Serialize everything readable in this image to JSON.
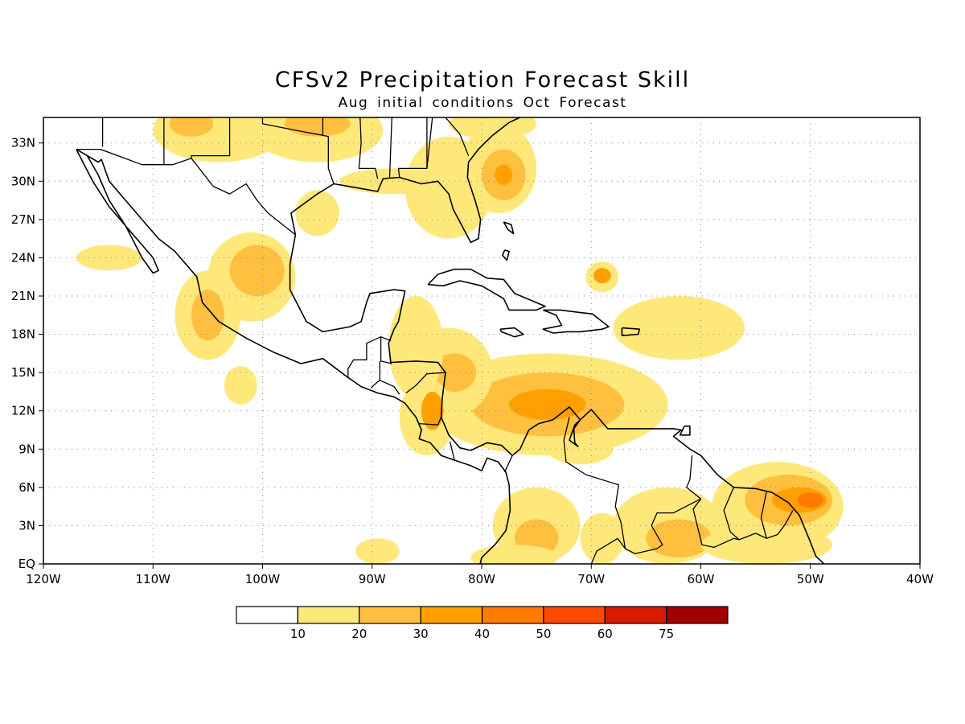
{
  "header": {
    "title": "CFSv2 Precipitation Forecast Skill",
    "subtitle": "Aug initial conditions  Oct Forecast"
  },
  "map": {
    "lon_range": [
      -120,
      -40
    ],
    "lat_range": [
      0,
      35
    ],
    "x_ticks": [
      "120W",
      "110W",
      "100W",
      "90W",
      "80W",
      "70W",
      "60W",
      "50W",
      "40W"
    ],
    "y_ticks": [
      "EQ",
      "3N",
      "6N",
      "9N",
      "12N",
      "15N",
      "18N",
      "21N",
      "24N",
      "27N",
      "30N",
      "33N"
    ],
    "grid": true
  },
  "legend": {
    "labels": [
      "10",
      "20",
      "30",
      "40",
      "50",
      "60",
      "75"
    ],
    "colors": [
      "#ffffff",
      "#ffe87a",
      "#ffc040",
      "#ffa000",
      "#ff7a00",
      "#ff4800",
      "#d81a00",
      "#a00000"
    ]
  },
  "shading": [
    {
      "level": 1,
      "lon": -74,
      "lat": 12.5,
      "rx": 11,
      "ry": 4
    },
    {
      "level": 2,
      "lon": -74,
      "lat": 12.5,
      "rx": 7,
      "ry": 2.5
    },
    {
      "level": 3,
      "lon": -74,
      "lat": 12.5,
      "rx": 3.5,
      "ry": 1.2
    },
    {
      "level": 1,
      "lon": -83,
      "lat": 15,
      "rx": 4,
      "ry": 3.5
    },
    {
      "level": 2,
      "lon": -82.5,
      "lat": 15,
      "rx": 2,
      "ry": 1.5
    },
    {
      "level": 1,
      "lon": -86,
      "lat": 17,
      "rx": 2.5,
      "ry": 4
    },
    {
      "level": 1,
      "lon": -85,
      "lat": 11.5,
      "rx": 2.5,
      "ry": 3
    },
    {
      "level": 3,
      "lon": -84.5,
      "lat": 12,
      "rx": 1,
      "ry": 1.5
    },
    {
      "level": 1,
      "lon": -101,
      "lat": 22.5,
      "rx": 4,
      "ry": 3.5
    },
    {
      "level": 2,
      "lon": -100.5,
      "lat": 23,
      "rx": 2.5,
      "ry": 2
    },
    {
      "level": 1,
      "lon": -105,
      "lat": 19.5,
      "rx": 3,
      "ry": 3.5
    },
    {
      "level": 2,
      "lon": -105,
      "lat": 19.5,
      "rx": 1.5,
      "ry": 2
    },
    {
      "level": 1,
      "lon": -102,
      "lat": 14,
      "rx": 1.5,
      "ry": 1.5
    },
    {
      "level": 1,
      "lon": -83,
      "lat": 29.5,
      "rx": 4,
      "ry": 4
    },
    {
      "level": 1,
      "lon": -78.5,
      "lat": 31,
      "rx": 3.5,
      "ry": 3.5
    },
    {
      "level": 2,
      "lon": -78,
      "lat": 30.5,
      "rx": 2,
      "ry": 2
    },
    {
      "level": 3,
      "lon": -78,
      "lat": 30.5,
      "rx": 0.8,
      "ry": 0.8
    },
    {
      "level": 1,
      "lon": -104,
      "lat": 34,
      "rx": 6,
      "ry": 2.5
    },
    {
      "level": 2,
      "lon": -106.5,
      "lat": 34.5,
      "rx": 2,
      "ry": 1
    },
    {
      "level": 1,
      "lon": -95,
      "lat": 34,
      "rx": 6,
      "ry": 2.5
    },
    {
      "level": 2,
      "lon": -95,
      "lat": 34.5,
      "rx": 3,
      "ry": 1
    },
    {
      "level": 1,
      "lon": -79,
      "lat": 34.5,
      "rx": 4,
      "ry": 1.2
    },
    {
      "level": 1,
      "lon": -53,
      "lat": 4.5,
      "rx": 6,
      "ry": 3.5
    },
    {
      "level": 2,
      "lon": -52,
      "lat": 5,
      "rx": 4,
      "ry": 2
    },
    {
      "level": 3,
      "lon": -51,
      "lat": 5,
      "rx": 2.5,
      "ry": 1
    },
    {
      "level": 4,
      "lon": -50,
      "lat": 5,
      "rx": 1.2,
      "ry": 0.6
    },
    {
      "level": 1,
      "lon": -63,
      "lat": 3,
      "rx": 5,
      "ry": 3
    },
    {
      "level": 2,
      "lon": -62,
      "lat": 2,
      "rx": 3,
      "ry": 1.5
    },
    {
      "level": 1,
      "lon": -75,
      "lat": 3,
      "rx": 4,
      "ry": 3
    },
    {
      "level": 2,
      "lon": -75,
      "lat": 2,
      "rx": 2,
      "ry": 1.5
    },
    {
      "level": 1,
      "lon": -69,
      "lat": 22.5,
      "rx": 1.5,
      "ry": 1.2
    },
    {
      "level": 3,
      "lon": -69,
      "lat": 22.6,
      "rx": 0.8,
      "ry": 0.6
    },
    {
      "level": 1,
      "lon": -69,
      "lat": 2,
      "rx": 2,
      "ry": 2
    },
    {
      "level": 1,
      "lon": -54,
      "lat": 1.5,
      "rx": 6,
      "ry": 1.5
    }
  ],
  "light_areas": [
    {
      "lon": -62,
      "lat": 18.5,
      "rx": 6,
      "ry": 2.5
    },
    {
      "lon": -71,
      "lat": 9,
      "rx": 3,
      "ry": 1.2
    },
    {
      "lon": -89.5,
      "lat": 1,
      "rx": 2,
      "ry": 1
    },
    {
      "lon": -114,
      "lat": 24,
      "rx": 3,
      "ry": 1
    },
    {
      "lon": -95,
      "lat": 27.5,
      "rx": 2,
      "ry": 1.8
    },
    {
      "lon": -88,
      "lat": 30,
      "rx": 5,
      "ry": 1
    },
    {
      "lon": -77,
      "lat": 0.5,
      "rx": 4,
      "ry": 1
    }
  ],
  "coast_paths": [
    [
      [
        -117,
        32.5
      ],
      [
        -115.5,
        30
      ],
      [
        -114,
        28
      ],
      [
        -112,
        26
      ],
      [
        -110,
        24
      ],
      [
        -109.5,
        23
      ],
      [
        -110,
        22.8
      ],
      [
        -111,
        24
      ],
      [
        -112.5,
        26.5
      ],
      [
        -114,
        28.5
      ],
      [
        -115,
        30.5
      ],
      [
        -116,
        32
      ]
    ],
    [
      [
        -117,
        32.5
      ],
      [
        -115,
        31.5
      ],
      [
        -114.7,
        31.7
      ],
      [
        -114,
        30
      ],
      [
        -112.5,
        28.5
      ],
      [
        -111,
        27
      ],
      [
        -109.5,
        25.5
      ],
      [
        -108,
        24.5
      ],
      [
        -106,
        22.5
      ],
      [
        -105.5,
        20.5
      ],
      [
        -104,
        19
      ],
      [
        -101.5,
        17.7
      ],
      [
        -99,
        16.6
      ],
      [
        -96.5,
        15.7
      ],
      [
        -94.5,
        16.1
      ],
      [
        -92.5,
        14.8
      ],
      [
        -91,
        13.9
      ],
      [
        -89.5,
        13.4
      ],
      [
        -88,
        13.1
      ],
      [
        -87,
        12.6
      ],
      [
        -86,
        11.5
      ],
      [
        -85.5,
        10.5
      ],
      [
        -85.7,
        9.8
      ],
      [
        -84.7,
        9.5
      ],
      [
        -83.7,
        8.5
      ],
      [
        -82.7,
        8.2
      ],
      [
        -81,
        7.7
      ],
      [
        -80,
        7.3
      ],
      [
        -79.5,
        8.3
      ],
      [
        -78.5,
        8
      ],
      [
        -77.8,
        7.2
      ],
      [
        -77.5,
        6.2
      ],
      [
        -77.4,
        4.2
      ],
      [
        -77.8,
        2.6
      ],
      [
        -78.8,
        1.5
      ],
      [
        -80,
        0.5
      ],
      [
        -80.2,
        -0.2
      ]
    ],
    [
      [
        -97,
        25.8
      ],
      [
        -97.5,
        23.5
      ],
      [
        -97.5,
        21.5
      ],
      [
        -96,
        19
      ],
      [
        -94.5,
        18.2
      ],
      [
        -92,
        18.6
      ],
      [
        -91,
        19
      ],
      [
        -90.5,
        20.5
      ],
      [
        -90.2,
        21.2
      ],
      [
        -88,
        21.5
      ],
      [
        -87,
        21.4
      ],
      [
        -87.6,
        19
      ],
      [
        -88,
        18.4
      ],
      [
        -88.5,
        17.3
      ],
      [
        -88.3,
        15.8
      ],
      [
        -86,
        15.9
      ],
      [
        -84,
        15.8
      ],
      [
        -83.3,
        15
      ],
      [
        -83.6,
        13
      ],
      [
        -83.7,
        11.5
      ],
      [
        -83,
        10.1
      ],
      [
        -82,
        9.1
      ],
      [
        -81,
        8.9
      ],
      [
        -79.5,
        9.5
      ],
      [
        -78.2,
        9.3
      ],
      [
        -77.2,
        8.5
      ],
      [
        -76.5,
        9
      ],
      [
        -75.7,
        10.5
      ],
      [
        -74.8,
        11
      ],
      [
        -73.5,
        11.3
      ],
      [
        -72,
        12.3
      ],
      [
        -71,
        11.3
      ],
      [
        -71.6,
        10.6
      ],
      [
        -71.5,
        9.5
      ],
      [
        -71.2,
        9.2
      ],
      [
        -72,
        9.7
      ],
      [
        -71.5,
        10.9
      ],
      [
        -70,
        12.1
      ],
      [
        -68.5,
        10.6
      ],
      [
        -66,
        10.6
      ],
      [
        -64,
        10.6
      ],
      [
        -62.5,
        10.6
      ],
      [
        -61.8,
        10.5
      ],
      [
        -62.5,
        10
      ],
      [
        -61,
        9
      ],
      [
        -60,
        8.5
      ],
      [
        -58.5,
        7
      ],
      [
        -57,
        6
      ],
      [
        -55,
        5.9
      ],
      [
        -53.5,
        5.6
      ],
      [
        -52,
        4.8
      ],
      [
        -51,
        3.8
      ],
      [
        -50,
        1.7
      ],
      [
        -49.5,
        0.6
      ],
      [
        -48.5,
        -0.2
      ]
    ],
    [
      [
        -97,
        25.8
      ],
      [
        -97.4,
        27.5
      ],
      [
        -95,
        29
      ],
      [
        -93.5,
        29.8
      ],
      [
        -91.5,
        29.5
      ],
      [
        -89.5,
        29.2
      ],
      [
        -89,
        30.2
      ],
      [
        -87.5,
        30.3
      ],
      [
        -85.5,
        29.8
      ],
      [
        -84,
        30
      ],
      [
        -83,
        29
      ],
      [
        -82.6,
        27.8
      ],
      [
        -81.8,
        26.5
      ],
      [
        -81,
        25.2
      ],
      [
        -80.3,
        25.5
      ],
      [
        -80.1,
        27
      ],
      [
        -80.6,
        28.5
      ],
      [
        -81.3,
        30.3
      ],
      [
        -81.2,
        31.5
      ],
      [
        -80.3,
        32.5
      ],
      [
        -79,
        33.6
      ],
      [
        -77.5,
        34.6
      ],
      [
        -76.5,
        35
      ]
    ],
    [
      [
        -84.9,
        21.9
      ],
      [
        -84,
        22.7
      ],
      [
        -82.5,
        23.1
      ],
      [
        -81,
        23.1
      ],
      [
        -79.5,
        22.4
      ],
      [
        -78,
        22.3
      ],
      [
        -77,
        21.2
      ],
      [
        -75.6,
        20.7
      ],
      [
        -74.2,
        20.2
      ],
      [
        -75,
        19.9
      ],
      [
        -77.5,
        19.9
      ],
      [
        -78,
        20.8
      ],
      [
        -80,
        21.8
      ],
      [
        -82,
        22.2
      ],
      [
        -83.5,
        21.8
      ],
      [
        -84.9,
        21.9
      ]
    ],
    [
      [
        -74.4,
        19.9
      ],
      [
        -72.8,
        19.9
      ],
      [
        -71,
        19.7
      ],
      [
        -69.9,
        19.6
      ],
      [
        -68.4,
        18.6
      ],
      [
        -69,
        18.4
      ],
      [
        -71,
        18.2
      ],
      [
        -72.2,
        18.2
      ],
      [
        -73.5,
        18.1
      ],
      [
        -74.4,
        18.4
      ],
      [
        -72.7,
        18.7
      ],
      [
        -73.2,
        19.5
      ],
      [
        -74.4,
        19.9
      ]
    ],
    [
      [
        -78.3,
        18.4
      ],
      [
        -77,
        18.5
      ],
      [
        -76.2,
        18
      ],
      [
        -77,
        17.8
      ],
      [
        -78.2,
        18.2
      ],
      [
        -78.3,
        18.4
      ]
    ],
    [
      [
        -67.2,
        18.5
      ],
      [
        -65.6,
        18.4
      ],
      [
        -65.7,
        18
      ],
      [
        -67.2,
        17.9
      ],
      [
        -67.2,
        18.5
      ]
    ],
    [
      [
        -78,
        26.8
      ],
      [
        -77.3,
        26.6
      ],
      [
        -77.1,
        25.9
      ],
      [
        -77.6,
        26.2
      ],
      [
        -78,
        26.8
      ]
    ],
    [
      [
        -77.9,
        24.6
      ],
      [
        -77.5,
        24.5
      ],
      [
        -77.7,
        23.8
      ],
      [
        -78.1,
        24.2
      ],
      [
        -77.9,
        24.6
      ]
    ],
    [
      [
        -61.5,
        10.8
      ],
      [
        -61,
        10.8
      ],
      [
        -61,
        10.1
      ],
      [
        -61.9,
        10.1
      ],
      [
        -61.5,
        10.8
      ]
    ]
  ],
  "border_paths": [
    [
      [
        -117,
        32.5
      ],
      [
        -114.8,
        32.5
      ],
      [
        -111,
        31.3
      ],
      [
        -108.2,
        31.3
      ],
      [
        -106.5,
        31.8
      ],
      [
        -104.5,
        29.6
      ],
      [
        -103,
        29
      ],
      [
        -101.5,
        29.8
      ],
      [
        -100.5,
        28.5
      ],
      [
        -99.5,
        27.5
      ],
      [
        -97,
        25.8
      ]
    ],
    [
      [
        -94.5,
        35
      ],
      [
        -94.5,
        33.6
      ],
      [
        -94,
        33.5
      ],
      [
        -94,
        31
      ],
      [
        -93.5,
        29.8
      ]
    ],
    [
      [
        -91.1,
        35
      ],
      [
        -91,
        33
      ],
      [
        -91.2,
        31
      ],
      [
        -89.7,
        31
      ],
      [
        -89.5,
        30.2
      ]
    ],
    [
      [
        -88.2,
        35
      ],
      [
        -88.4,
        30.3
      ]
    ],
    [
      [
        -85,
        35
      ],
      [
        -85,
        31
      ],
      [
        -87.6,
        31
      ],
      [
        -87.5,
        30.3
      ]
    ],
    [
      [
        -103,
        35
      ],
      [
        -103,
        32
      ],
      [
        -106.5,
        32
      ],
      [
        -106.5,
        31.8
      ]
    ],
    [
      [
        -109,
        35
      ],
      [
        -109,
        31.3
      ]
    ],
    [
      [
        -114.6,
        35
      ],
      [
        -114.6,
        32.7
      ]
    ],
    [
      [
        -100,
        35
      ],
      [
        -100,
        34.5
      ],
      [
        -97,
        34
      ],
      [
        -94.5,
        33.6
      ]
    ],
    [
      [
        -83.3,
        35
      ],
      [
        -82,
        33.7
      ],
      [
        -81.2,
        32
      ]
    ],
    [
      [
        -84.5,
        35
      ],
      [
        -85,
        31
      ]
    ],
    [
      [
        -92.2,
        14.6
      ],
      [
        -92.2,
        15.3
      ],
      [
        -91.7,
        16
      ],
      [
        -90.5,
        16
      ],
      [
        -90.5,
        17.3
      ],
      [
        -89.2,
        17.8
      ],
      [
        -88.3,
        17.5
      ]
    ],
    [
      [
        -89.2,
        17.8
      ],
      [
        -89.2,
        15.9
      ],
      [
        -88.2,
        15.7
      ]
    ],
    [
      [
        -89.3,
        15.9
      ],
      [
        -89.3,
        14.4
      ],
      [
        -89.6,
        14.2
      ],
      [
        -90.1,
        13.8
      ]
    ],
    [
      [
        -89.3,
        14.4
      ],
      [
        -88,
        13.9
      ],
      [
        -87.5,
        13.3
      ]
    ],
    [
      [
        -86.9,
        13.4
      ],
      [
        -86,
        14
      ],
      [
        -85,
        14.9
      ],
      [
        -83.3,
        15
      ]
    ],
    [
      [
        -85.7,
        11
      ],
      [
        -84,
        10.9
      ],
      [
        -83.7,
        11.5
      ]
    ],
    [
      [
        -82.9,
        9.6
      ],
      [
        -82.5,
        8.2
      ]
    ],
    [
      [
        -77.2,
        8.5
      ],
      [
        -77.9,
        7.2
      ]
    ],
    [
      [
        -72,
        11.5
      ],
      [
        -72.5,
        9.7
      ],
      [
        -72.3,
        8
      ],
      [
        -70.5,
        7
      ],
      [
        -67.5,
        6.2
      ],
      [
        -67.8,
        4.5
      ],
      [
        -67.3,
        3.3
      ],
      [
        -66.9,
        1.2
      ],
      [
        -67.6,
        2
      ],
      [
        -69.5,
        1
      ],
      [
        -70,
        0
      ]
    ],
    [
      [
        -60.8,
        8.5
      ],
      [
        -61,
        6.6
      ],
      [
        -61.3,
        6
      ],
      [
        -60,
        5.1
      ],
      [
        -60.7,
        4.3
      ],
      [
        -59.9,
        1.5
      ],
      [
        -58.8,
        1.3
      ],
      [
        -57,
        2
      ],
      [
        -56.5,
        1.9
      ]
    ],
    [
      [
        -57,
        6
      ],
      [
        -57.9,
        4.2
      ],
      [
        -57.3,
        2.5
      ],
      [
        -56.5,
        1.9
      ],
      [
        -55,
        2.4
      ],
      [
        -54,
        2
      ]
    ],
    [
      [
        -54,
        5.7
      ],
      [
        -54.5,
        3.6
      ],
      [
        -54,
        2
      ]
    ],
    [
      [
        -51.6,
        4.2
      ],
      [
        -52.3,
        3.1
      ],
      [
        -53,
        2.3
      ],
      [
        -54,
        2
      ]
    ],
    [
      [
        -60,
        5.1
      ],
      [
        -62.5,
        4
      ],
      [
        -64,
        4
      ],
      [
        -64.5,
        3
      ],
      [
        -63.5,
        1.5
      ],
      [
        -64,
        1.2
      ],
      [
        -66,
        0.8
      ],
      [
        -66.9,
        1.2
      ]
    ]
  ]
}
